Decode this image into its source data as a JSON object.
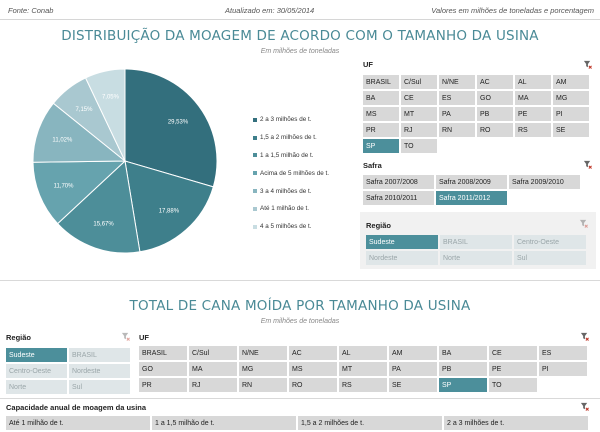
{
  "topbar": {
    "source": "Fonte: Conab",
    "updated": "Atualizado em: 30/05/2014",
    "values_note": "Valores em milhões de toneladas e porcentagem"
  },
  "section1": {
    "title": "DISTRIBUIÇÃO DA MOAGEM DE ACORDO COM O TAMANHO DA USINA",
    "subtitle": "Em milhões de toneladas"
  },
  "section2": {
    "title": "TOTAL DE CANA MOÍDA POR TAMANHO DA USINA",
    "subtitle": "Em milhões de toneladas"
  },
  "chart_data": {
    "type": "pie",
    "labels": [
      "2 a 3 milhões de t.",
      "1,5 a 2 milhões de t.",
      "1 a 1,5 milhão de t.",
      "Acima de 5 milhões de t.",
      "3 a 4 milhões de t.",
      "Até 1 milhão de t.",
      "4 a 5 milhões de t."
    ],
    "values": [
      29.53,
      17.88,
      15.67,
      11.7,
      11.02,
      7.15,
      7.05
    ],
    "value_labels": [
      "29,53%",
      "17,88%",
      "15,67%",
      "11,70%",
      "11,02%",
      "7,15%",
      "7,05%"
    ],
    "colors": [
      "#336f7d",
      "#3e7f8b",
      "#4d8e99",
      "#66a3ae",
      "#88b5bf",
      "#a9c8d0",
      "#c8dde2"
    ],
    "legend_position": "right"
  },
  "slicer_uf": {
    "header": "UF",
    "items": [
      "BRASIL",
      "C/Sul",
      "N/NE",
      "AC",
      "AL",
      "AM",
      "BA",
      "CE",
      "ES",
      "GO",
      "MA",
      "MG",
      "MS",
      "MT",
      "PA",
      "PB",
      "PE",
      "PI",
      "PR",
      "RJ",
      "RN",
      "RO",
      "RS",
      "SE",
      "SP",
      "TO"
    ],
    "selected": "SP"
  },
  "slicer_safra": {
    "header": "Safra",
    "items": [
      "Safra 2007/2008",
      "Safra 2008/2009",
      "Safra 2009/2010",
      "Safra 2010/2011",
      "Safra 2011/2012"
    ],
    "selected": "Safra 2011/2012"
  },
  "slicer_regiao_top": {
    "header": "Região",
    "items": [
      "Sudeste",
      "BRASIL",
      "Centro-Oeste",
      "Nordeste",
      "Norte",
      "Sul"
    ],
    "selected": "Sudeste"
  },
  "slicer_regiao_bottom": {
    "header": "Região",
    "items": [
      "Sudeste",
      "BRASIL",
      "Centro-Oeste",
      "Nordeste",
      "Norte",
      "Sul"
    ],
    "selected": "Sudeste"
  },
  "slicer_uf_bottom": {
    "header": "UF",
    "items": [
      "BRASIL",
      "C/Sul",
      "N/NE",
      "AC",
      "AL",
      "AM",
      "BA",
      "CE",
      "ES",
      "GO",
      "MA",
      "MG",
      "MS",
      "MT",
      "PA",
      "PB",
      "PE",
      "PI",
      "PR",
      "RJ",
      "RN",
      "RO",
      "RS",
      "SE",
      "SP",
      "TO"
    ],
    "selected": "SP"
  },
  "slicer_capacidade": {
    "header": "Capacidade anual de moagem da usina",
    "items": [
      "Até 1 milhão de t.",
      "1 a 1,5 milhão de t.",
      "1,5 a 2 milhões de t.",
      "2 a 3 milhões de t."
    ]
  }
}
